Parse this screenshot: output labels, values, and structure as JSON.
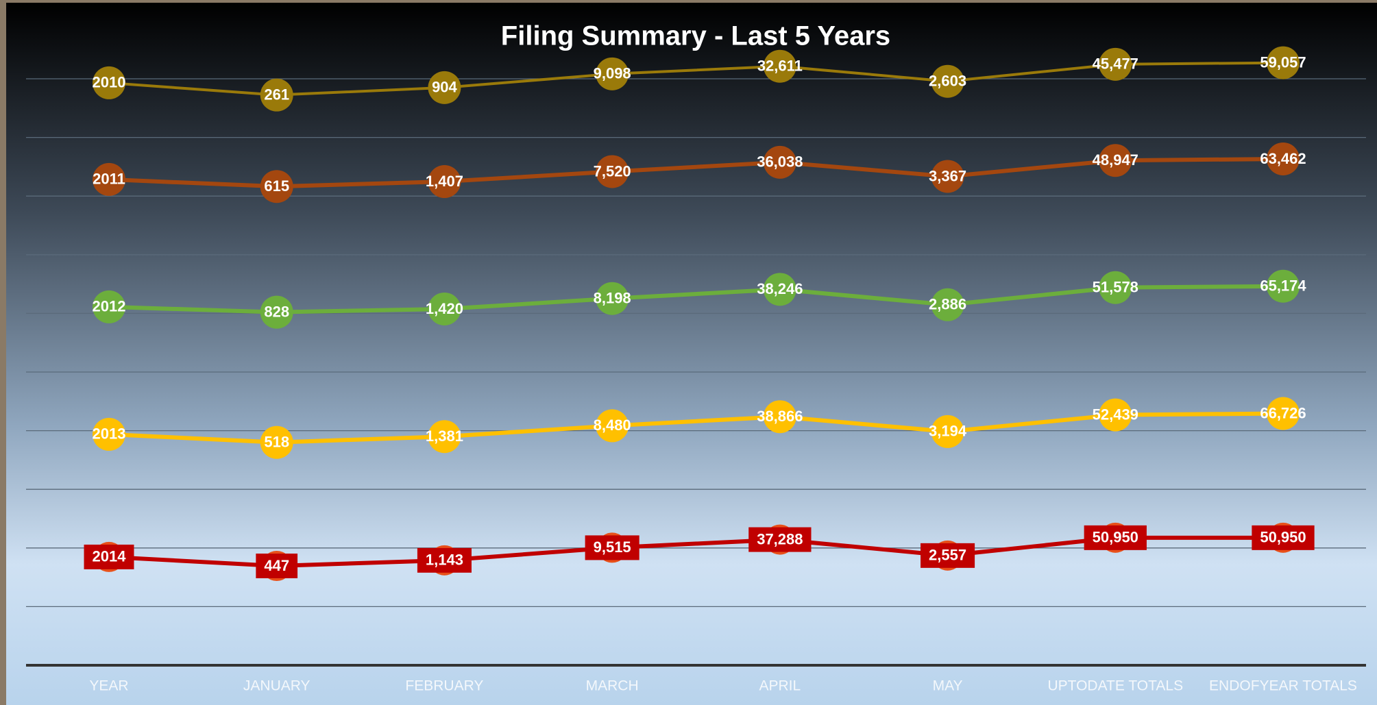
{
  "chart_data": {
    "type": "line",
    "title": "Filing Summary - Last 5 Years",
    "categories": [
      "YEAR",
      "JANUARY",
      "FEBRUARY",
      "MARCH",
      "APRIL",
      "MAY",
      "UPTODATE TOTALS",
      "ENDOFYEAR TOTALS"
    ],
    "series": [
      {
        "color": "#9a7a0a",
        "values": [
          2010,
          261,
          904,
          9098,
          32611,
          2603,
          45477,
          59057
        ],
        "value_labels": [
          "2010",
          "261",
          "904",
          "9,098",
          "32,611",
          "2,603",
          "45,477",
          "59,057"
        ]
      },
      {
        "color": "#a4470f",
        "values": [
          2011,
          615,
          1407,
          7520,
          36038,
          3367,
          48947,
          63462
        ],
        "value_labels": [
          "2011",
          "615",
          "1,407",
          "7,520",
          "36,038",
          "3,367",
          "48,947",
          "63,462"
        ]
      },
      {
        "color": "#6cae3c",
        "values": [
          2012,
          828,
          1420,
          8198,
          38246,
          2886,
          51578,
          65174
        ],
        "value_labels": [
          "2012",
          "828",
          "1,420",
          "8,198",
          "38,246",
          "2,886",
          "51,578",
          "65,174"
        ]
      },
      {
        "color": "#ffc000",
        "values": [
          2013,
          518,
          1381,
          8480,
          38866,
          3194,
          52439,
          66726
        ],
        "value_labels": [
          "2013",
          "518",
          "1,381",
          "8,480",
          "38,866",
          "3,194",
          "52,439",
          "66,726"
        ]
      },
      {
        "color": "#c00000",
        "values": [
          2014,
          447,
          1143,
          9515,
          37288,
          2557,
          50950,
          50950
        ],
        "value_labels": [
          "2014",
          "447",
          "1,143",
          "9,515",
          "37,288",
          "2,557",
          "50,950",
          "50,950"
        ]
      }
    ]
  }
}
